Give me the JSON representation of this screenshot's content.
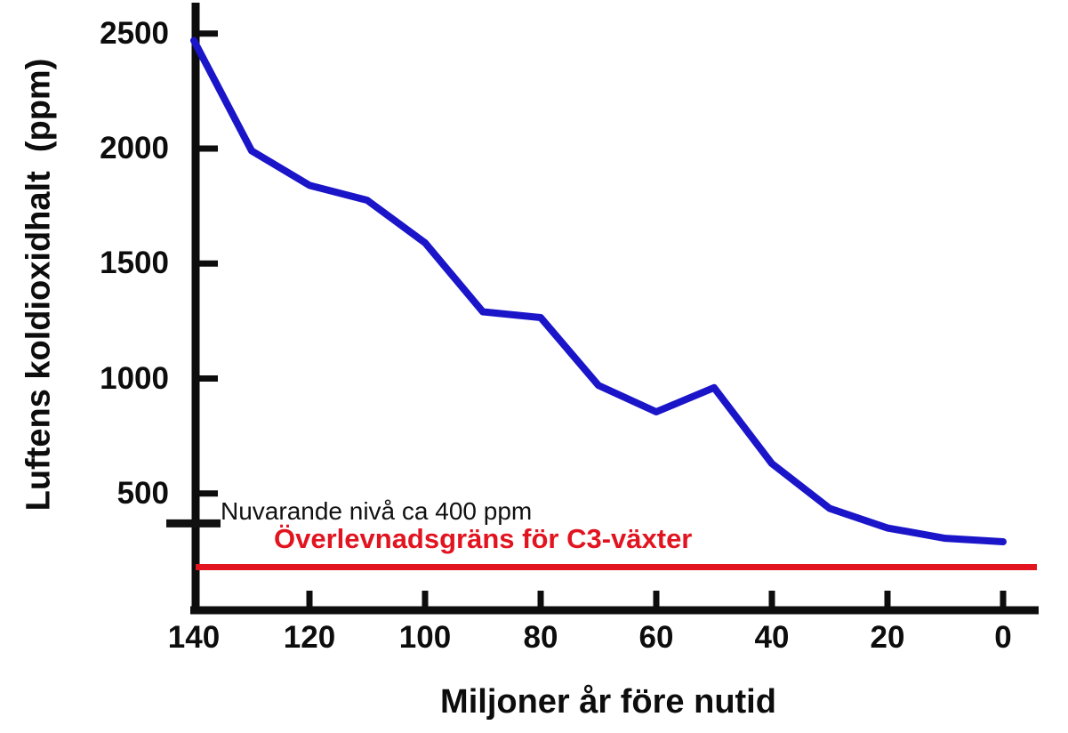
{
  "chart_data": {
    "type": "line",
    "title": "",
    "xlabel": "Miljoner år före nutid",
    "ylabel": "Luftens koldioxidhalt  (ppm)",
    "x": [
      140,
      130,
      120,
      110,
      100,
      90,
      80,
      70,
      60,
      50,
      40,
      30,
      20,
      10,
      0
    ],
    "series": [
      {
        "name": "koldioxidhalt",
        "color": "#1b15c9",
        "values": [
          2470,
          1990,
          1840,
          1775,
          1590,
          1290,
          1265,
          970,
          855,
          960,
          630,
          435,
          350,
          305,
          290
        ]
      }
    ],
    "x_ticks": [
      140,
      120,
      100,
      80,
      60,
      40,
      20,
      0
    ],
    "y_ticks": [
      2500,
      2000,
      1500,
      1000,
      500
    ],
    "xlim": [
      140,
      0
    ],
    "ylim": [
      0,
      2650
    ],
    "x_axis_reversed": true,
    "grid": false,
    "legend": "none",
    "annotations": [
      {
        "id": "current-level",
        "text": "Nuvarande nivå ca 400 ppm",
        "color": "#111111",
        "marker_ppm": 370
      },
      {
        "id": "c3-survival-limit",
        "text": "Överlevnadsgräns för C3-växter",
        "color": "#e11420",
        "line_ppm": 180
      }
    ]
  },
  "colors": {
    "axis": "#0d0d0d",
    "line": "#1b15c9",
    "limit": "#e11420"
  }
}
